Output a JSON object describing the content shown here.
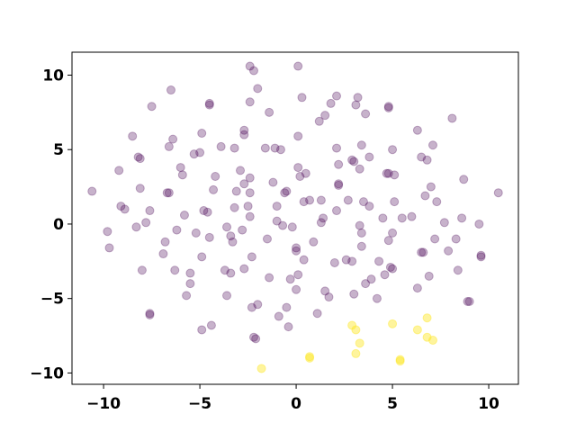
{
  "chart_data": {
    "type": "scatter",
    "xlim": [
      -11.64,
      11.54
    ],
    "ylim": [
      -10.76,
      11.54
    ],
    "xticks": [
      {
        "value": -10,
        "label": "−10"
      },
      {
        "value": -5,
        "label": "−5"
      },
      0,
      5,
      10
    ],
    "yticks": [
      {
        "value": -10,
        "label": "−10"
      },
      {
        "value": -5,
        "label": "−5"
      },
      0,
      5,
      10
    ],
    "grid": false,
    "series": [
      {
        "color": "#440154",
        "opacity": 0.3,
        "x": [
          -10.6,
          -9.8,
          -9.7,
          -9.2,
          -9.1,
          -8.9,
          -8.5,
          -8.3,
          -8.2,
          -8.1,
          -8.1,
          -8.0,
          -7.8,
          -7.6,
          -7.6,
          -7.6,
          -7.5,
          -6.9,
          -6.8,
          -6.7,
          -6.6,
          -6.6,
          -6.5,
          -6.4,
          -6.3,
          -6.2,
          -6.0,
          -5.9,
          -5.8,
          -5.7,
          -5.5,
          -5.5,
          -5.3,
          -5.2,
          -5.0,
          -4.9,
          -4.9,
          -4.9,
          -4.8,
          -4.6,
          -4.5,
          -4.5,
          -4.5,
          -4.4,
          -4.3,
          -4.2,
          -3.9,
          -3.7,
          -3.6,
          -3.6,
          -3.4,
          -3.4,
          -3.3,
          -3.2,
          -3.2,
          -3.1,
          -2.9,
          -2.8,
          -2.7,
          -2.7,
          -2.7,
          -2.7,
          -2.5,
          -2.4,
          -2.2,
          -2.4,
          -2.4,
          -2.4,
          -2.4,
          -2.3,
          -2.3,
          -2.2,
          -2.1,
          -2.0,
          -2.0,
          -1.6,
          -1.5,
          -1.4,
          -1.4,
          -1.2,
          -1.1,
          -1.0,
          -1.0,
          -0.9,
          -0.8,
          -0.7,
          -0.6,
          -0.5,
          -0.5,
          -0.4,
          -0.3,
          -0.2,
          0.0,
          0.0,
          0.0,
          0.1,
          0.1,
          0.1,
          0.1,
          0.2,
          0.3,
          0.4,
          0.4,
          0.5,
          0.7,
          0.9,
          1.1,
          1.2,
          1.3,
          1.3,
          1.4,
          1.5,
          1.5,
          1.7,
          1.8,
          2.0,
          2.1,
          2.1,
          2.1,
          2.2,
          2.2,
          2.2,
          2.6,
          2.7,
          2.9,
          2.9,
          3.0,
          3.0,
          3.1,
          3.2,
          3.3,
          3.3,
          3.4,
          3.4,
          3.4,
          3.5,
          3.6,
          3.6,
          3.8,
          3.8,
          3.9,
          4.2,
          4.3,
          4.5,
          4.6,
          4.7,
          4.8,
          4.8,
          4.8,
          4.8,
          4.9,
          5.0,
          5.0,
          5.0,
          5.1,
          5.1,
          5.5,
          6.0,
          6.3,
          6.3,
          6.5,
          6.6,
          6.5,
          6.7,
          6.8,
          6.9,
          7.0,
          7.1,
          7.2,
          7.3,
          7.7,
          7.9,
          8.1,
          8.3,
          8.4,
          8.6,
          8.7,
          8.9,
          9.0,
          9.5,
          9.6,
          9.6,
          10.5
        ],
        "y": [
          2.2,
          -0.5,
          -1.6,
          3.6,
          1.2,
          1.0,
          5.9,
          -0.2,
          4.5,
          4.4,
          2.4,
          -3.1,
          0.1,
          0.9,
          -6.0,
          -6.1,
          7.9,
          -2.0,
          -1.2,
          2.1,
          2.1,
          5.2,
          9.0,
          5.7,
          -3.1,
          -0.4,
          3.8,
          3.3,
          0.6,
          -4.8,
          -3.3,
          -4.0,
          4.7,
          -0.6,
          4.8,
          6.1,
          -2.2,
          -7.1,
          0.9,
          0.8,
          8.0,
          8.1,
          -0.9,
          -6.8,
          2.3,
          3.2,
          5.2,
          -3.1,
          -4.8,
          -0.2,
          -3.3,
          -0.8,
          -1.2,
          5.1,
          1.1,
          2.2,
          3.6,
          -0.4,
          6.3,
          6.0,
          -3.0,
          2.7,
          1.2,
          10.6,
          10.3,
          8.2,
          3.1,
          0.5,
          2.1,
          -2.2,
          -5.6,
          -7.6,
          -7.7,
          -5.4,
          9.1,
          5.1,
          -1.0,
          -3.6,
          7.5,
          2.8,
          5.1,
          1.2,
          0.2,
          -6.2,
          5.0,
          -0.1,
          2.1,
          2.2,
          -5.6,
          -6.9,
          -3.7,
          -0.2,
          -4.4,
          -1.6,
          -1.8,
          10.6,
          5.9,
          3.8,
          -3.4,
          3.2,
          8.5,
          -2.4,
          1.5,
          3.4,
          1.6,
          -1.2,
          -6.0,
          6.9,
          1.6,
          0.1,
          0.4,
          7.3,
          -4.5,
          -4.9,
          8.1,
          -2.6,
          5.1,
          8.6,
          0.9,
          4.0,
          2.7,
          2.6,
          -2.4,
          1.6,
          -2.5,
          4.3,
          -4.7,
          4.2,
          8.0,
          8.5,
          -0.1,
          3.7,
          5.3,
          -0.6,
          -1.5,
          1.5,
          -4.0,
          7.4,
          4.5,
          1.2,
          -3.7,
          -5.0,
          -2.5,
          0.4,
          -3.4,
          3.4,
          3.4,
          7.9,
          7.8,
          -1.1,
          -2.9,
          -0.6,
          -3.0,
          5.0,
          3.3,
          1.5,
          0.4,
          0.5,
          6.3,
          -4.3,
          4.5,
          -1.9,
          -1.9,
          1.9,
          4.3,
          -3.5,
          2.5,
          5.3,
          -1.0,
          1.5,
          0.1,
          -1.8,
          7.1,
          -1.0,
          -3.1,
          0.4,
          3.0,
          -5.2,
          -5.2,
          0.0,
          -2.2,
          -2.1,
          2.1
        ]
      },
      {
        "color": "#fde725",
        "opacity": 0.45,
        "x": [
          -1.8,
          0.7,
          0.7,
          2.9,
          3.1,
          3.1,
          3.3,
          5.0,
          5.4,
          5.4,
          6.3,
          6.8,
          6.8,
          7.1
        ],
        "y": [
          -9.7,
          -8.9,
          -9.0,
          -6.8,
          -7.1,
          -8.7,
          -8.0,
          -6.7,
          -9.1,
          -9.2,
          -7.1,
          -6.3,
          -7.6,
          -7.8
        ]
      }
    ]
  }
}
